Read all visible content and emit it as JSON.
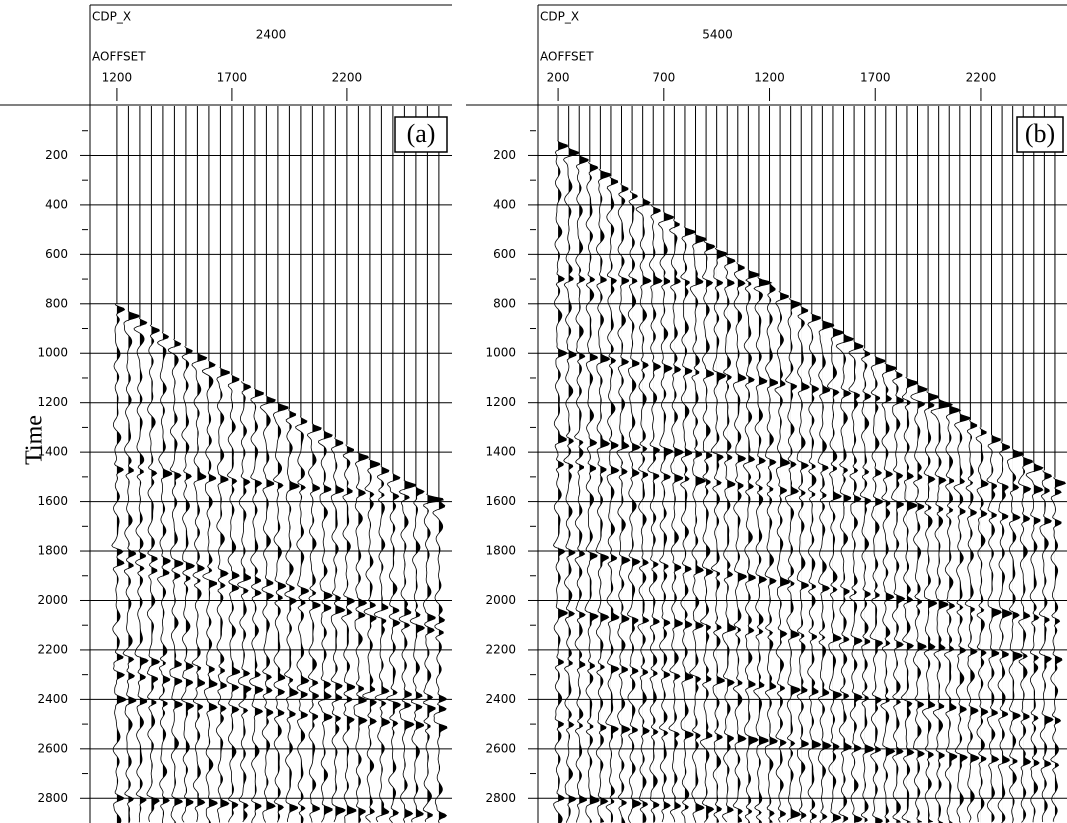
{
  "y_axis_label": "Time",
  "panels": [
    {
      "tag": "(a)",
      "key1": "CDP_X",
      "value1": "2400",
      "key2": "AOFFSET",
      "offset_range": [
        1083,
        2657
      ],
      "offset_ticks": [
        1200,
        1700,
        2200
      ],
      "time_range": [
        0,
        2900
      ],
      "time_ticks": [
        200,
        400,
        600,
        800,
        1000,
        1200,
        1400,
        1600,
        1800,
        2000,
        2200,
        2400,
        2600,
        2800
      ]
    },
    {
      "tag": "(b)",
      "key1": "CDP_X",
      "value1": "5400",
      "key2": "AOFFSET",
      "offset_range": [
        105,
        2607
      ],
      "offset_ticks": [
        200,
        700,
        1200,
        1700,
        2200
      ],
      "time_range": [
        0,
        2900
      ],
      "time_ticks": [
        200,
        400,
        600,
        800,
        1000,
        1200,
        1400,
        1600,
        1800,
        2000,
        2200,
        2400,
        2600,
        2800
      ]
    }
  ]
}
